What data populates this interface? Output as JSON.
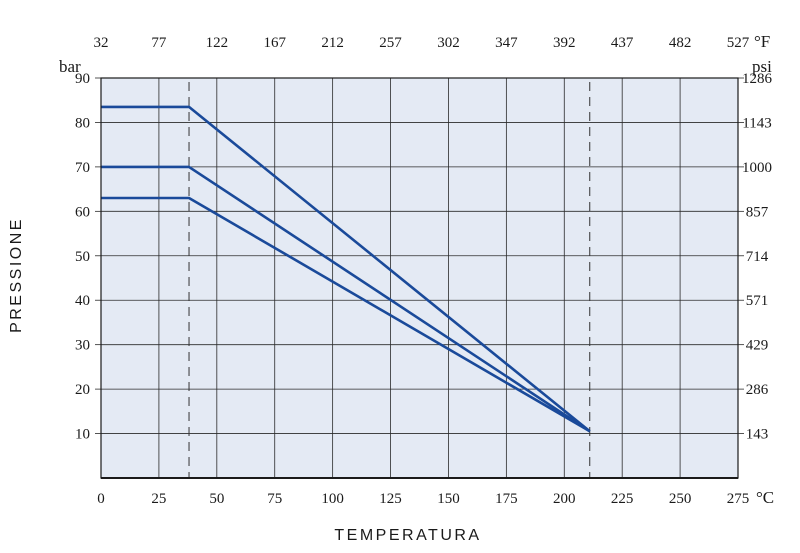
{
  "chart_data": {
    "type": "line",
    "xlabel": "TEMPERATURA",
    "ylabel": "PRESSIONE",
    "x_unit": "°C",
    "x_top_unit": "°F",
    "y_unit": "bar",
    "y_right_unit": "psi",
    "xlim": [
      0,
      275
    ],
    "ylim": [
      0,
      90
    ],
    "x_ticks": [
      0,
      25,
      50,
      75,
      100,
      125,
      150,
      175,
      200,
      225,
      250,
      275
    ],
    "x_top_ticks": [
      "32",
      "77",
      "122",
      "167",
      "212",
      "257",
      "302",
      "347",
      "392",
      "437",
      "482",
      "527"
    ],
    "y_ticks": [
      10,
      20,
      30,
      40,
      50,
      60,
      70,
      80,
      90
    ],
    "y_right_ticks": [
      "143",
      "286",
      "429",
      "571",
      "714",
      "857",
      "1000",
      "1143",
      "1286"
    ],
    "grid": true,
    "dashed_verticals": [
      38,
      211
    ],
    "series": [
      {
        "values": [
          [
            0,
            83.5
          ],
          [
            38,
            83.5
          ],
          [
            211,
            10.5
          ]
        ]
      },
      {
        "values": [
          [
            0,
            70
          ],
          [
            38,
            70
          ],
          [
            211,
            10.5
          ]
        ]
      },
      {
        "values": [
          [
            0,
            63
          ],
          [
            38,
            63
          ],
          [
            211,
            10.5
          ]
        ]
      }
    ],
    "colors": {
      "plot_bg": "#e4eaf4",
      "line": "#1a4a9a",
      "grid": "#2a2a2a"
    }
  }
}
